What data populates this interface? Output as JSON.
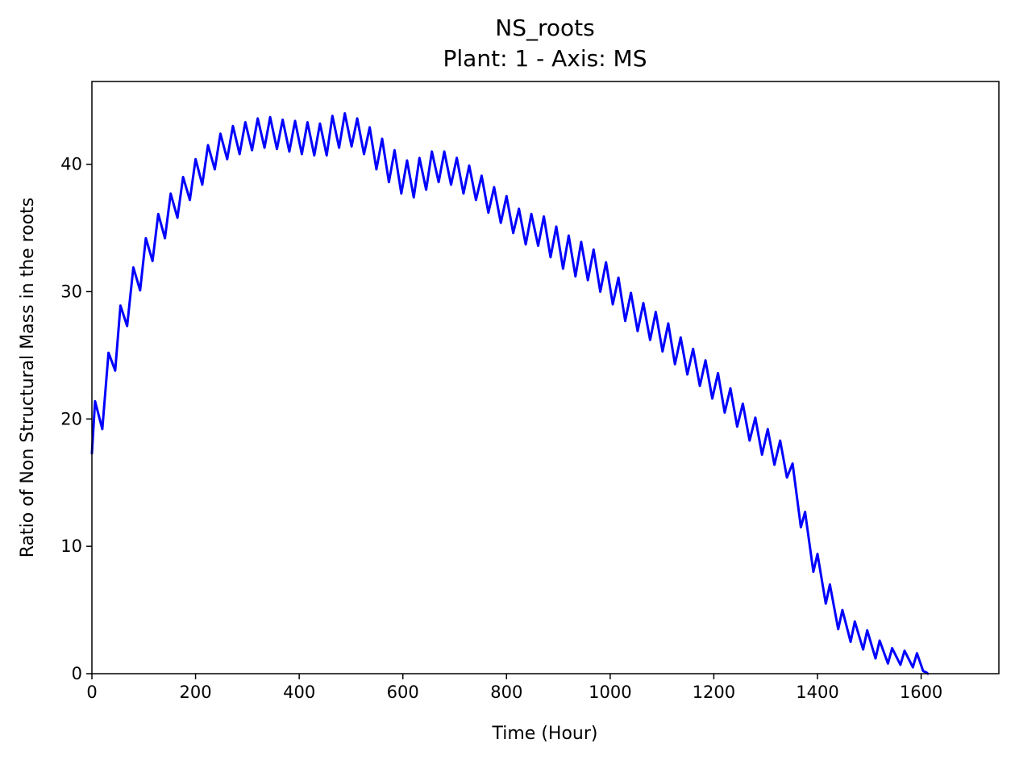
{
  "chart_data": {
    "type": "line",
    "title": "NS_roots",
    "subtitle": "Plant: 1 - Axis: MS",
    "xlabel": "Time (Hour)",
    "ylabel": "Ratio of Non Structural Mass in the roots",
    "xlim": [
      0,
      1750
    ],
    "ylim": [
      0,
      46.5
    ],
    "x_ticks": [
      0,
      200,
      400,
      600,
      800,
      1000,
      1200,
      1400,
      1600
    ],
    "x_tick_labels": [
      "0",
      "200",
      "400",
      "600",
      "800",
      "1000",
      "1200",
      "1400",
      "1600"
    ],
    "y_ticks": [
      0,
      10,
      20,
      30,
      40
    ],
    "y_tick_labels": [
      "0",
      "10",
      "20",
      "30",
      "40"
    ],
    "grid": false,
    "series": [
      {
        "color": "#0000ff",
        "x": [
          0,
          6,
          20,
          32,
          45,
          55,
          68,
          80,
          93,
          104,
          117,
          128,
          141,
          152,
          165,
          176,
          189,
          200,
          213,
          224,
          237,
          248,
          261,
          272,
          285,
          296,
          309,
          320,
          333,
          344,
          357,
          368,
          381,
          392,
          405,
          416,
          429,
          440,
          453,
          464,
          477,
          488,
          501,
          512,
          525,
          536,
          549,
          560,
          573,
          584,
          597,
          608,
          621,
          632,
          645,
          656,
          669,
          680,
          693,
          704,
          717,
          728,
          741,
          752,
          765,
          776,
          789,
          800,
          813,
          824,
          837,
          848,
          861,
          872,
          885,
          896,
          909,
          920,
          933,
          944,
          957,
          968,
          981,
          992,
          1005,
          1016,
          1029,
          1040,
          1053,
          1064,
          1077,
          1088,
          1101,
          1112,
          1125,
          1136,
          1149,
          1160,
          1173,
          1184,
          1197,
          1208,
          1221,
          1232,
          1245,
          1256,
          1269,
          1280,
          1293,
          1304,
          1317,
          1328,
          1341,
          1352,
          1368,
          1376,
          1392,
          1400,
          1416,
          1424,
          1440,
          1448,
          1464,
          1472,
          1488,
          1496,
          1512,
          1520,
          1536,
          1544,
          1560,
          1568,
          1584,
          1592,
          1604,
          1610,
          1613
        ],
        "y": [
          17.3,
          21.4,
          19.2,
          25.2,
          23.8,
          28.9,
          27.3,
          31.9,
          30.1,
          34.2,
          32.4,
          36.1,
          34.2,
          37.7,
          35.8,
          39.0,
          37.2,
          40.4,
          38.4,
          41.5,
          39.6,
          42.4,
          40.4,
          43.0,
          40.8,
          43.3,
          41.1,
          43.6,
          41.3,
          43.7,
          41.2,
          43.5,
          41.0,
          43.4,
          40.8,
          43.3,
          40.7,
          43.2,
          40.7,
          43.8,
          41.3,
          44.0,
          41.4,
          43.6,
          40.8,
          42.9,
          39.6,
          42.0,
          38.6,
          41.1,
          37.7,
          40.3,
          37.4,
          40.5,
          38.0,
          41.0,
          38.6,
          41.0,
          38.4,
          40.5,
          37.7,
          39.9,
          37.2,
          39.1,
          36.2,
          38.2,
          35.4,
          37.5,
          34.6,
          36.5,
          33.7,
          36.1,
          33.6,
          35.9,
          32.7,
          35.1,
          31.8,
          34.4,
          31.2,
          33.9,
          30.9,
          33.3,
          30.0,
          32.3,
          29.0,
          31.1,
          27.7,
          29.9,
          26.9,
          29.1,
          26.2,
          28.4,
          25.3,
          27.5,
          24.3,
          26.4,
          23.5,
          25.5,
          22.6,
          24.6,
          21.6,
          23.6,
          20.5,
          22.4,
          19.4,
          21.2,
          18.3,
          20.1,
          17.2,
          19.2,
          16.4,
          18.3,
          15.4,
          16.5,
          11.5,
          12.7,
          8.0,
          9.4,
          5.5,
          7.0,
          3.5,
          5.0,
          2.5,
          4.1,
          1.9,
          3.4,
          1.2,
          2.6,
          0.8,
          2.0,
          0.7,
          1.8,
          0.5,
          1.6,
          0.2,
          0.1,
          0.0
        ]
      }
    ]
  }
}
